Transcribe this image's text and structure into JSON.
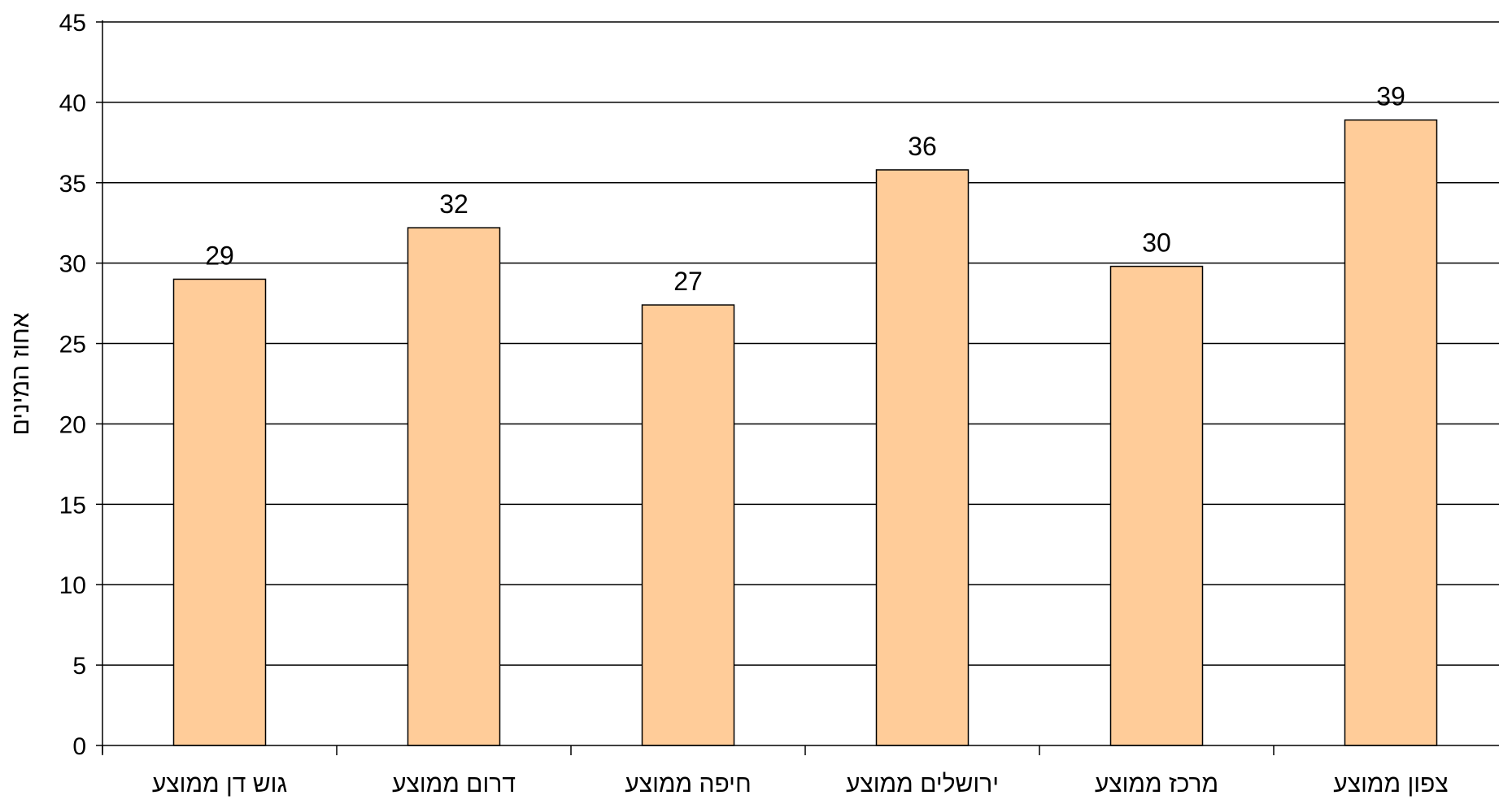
{
  "chart_data": {
    "type": "bar",
    "title": "",
    "xlabel": "",
    "ylabel": "אחוז המינים",
    "categories": [
      "גוש דן ממוצע",
      "דרום ממוצע",
      "חיפה ממוצע",
      "ירושלים ממוצע",
      "מרכז ממוצע",
      "צפון ממוצע"
    ],
    "values": [
      29,
      32.2,
      27.4,
      35.8,
      29.8,
      38.9
    ],
    "data_labels": [
      "29",
      "32",
      "27",
      "36",
      "30",
      "39"
    ],
    "ylim": [
      0,
      45
    ],
    "yticks": [
      0,
      5,
      10,
      15,
      20,
      25,
      30,
      35,
      40,
      45
    ],
    "grid": true,
    "legend": "none"
  },
  "colors": {
    "bar_fill": "#FFCC99",
    "bar_stroke": "#000000",
    "grid": "#000000",
    "axis": "#000000",
    "background": "#ffffff"
  }
}
